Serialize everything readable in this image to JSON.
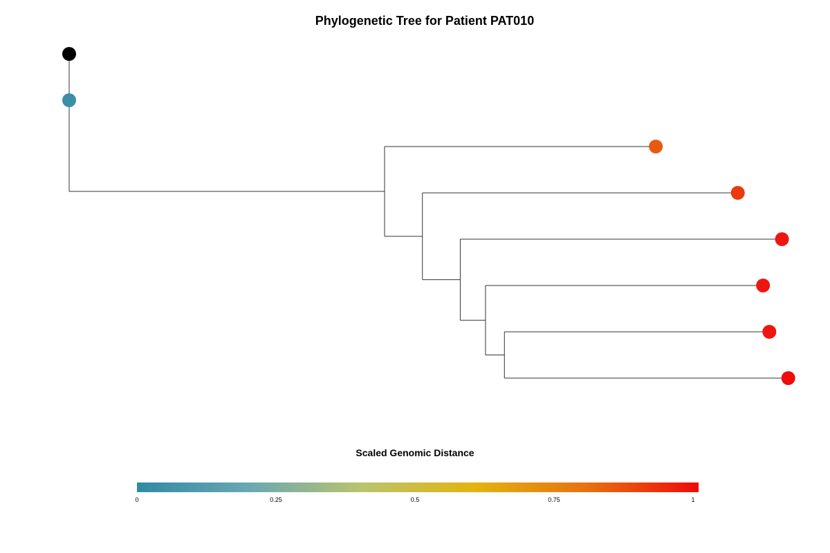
{
  "chart_data": {
    "type": "tree",
    "title": "Phylogenetic Tree for Patient PAT010",
    "root": {
      "distance": 0,
      "color": "#000000",
      "children": [
        {
          "distance": 0,
          "color": "#3a8ea8",
          "children": [
            {
              "distance": 0.5,
              "children": [
                {
                  "distance": 0.93,
                  "color": "#e85a12"
                },
                {
                  "distance": 0.56,
                  "children": [
                    {
                      "distance": 1.06,
                      "color": "#ec3a10"
                    },
                    {
                      "distance": 0.62,
                      "children": [
                        {
                          "distance": 1.13,
                          "color": "#ee1610"
                        },
                        {
                          "distance": 0.66,
                          "children": [
                            {
                              "distance": 1.1,
                              "color": "#ee1610"
                            },
                            {
                              "distance": 0.69,
                              "children": [
                                {
                                  "distance": 1.11,
                                  "color": "#ee1610"
                                },
                                {
                                  "distance": 1.14,
                                  "color": "#ee0c0c"
                                }
                              ]
                            }
                          ]
                        }
                      ]
                    }
                  ]
                }
              ]
            }
          ]
        }
      ]
    },
    "colorbar": {
      "title": "Scaled Genomic Distance",
      "range": [
        0,
        1
      ],
      "ticks": [
        0,
        0.25,
        0.5,
        0.75,
        1
      ],
      "tick_labels": [
        "0",
        "0.25",
        "0.5",
        "0.75",
        "1"
      ],
      "gradient": [
        "#2f8aa5",
        "#6aa7b3",
        "#b9c46e",
        "#e3b40f",
        "#e7720f",
        "#f00a0a"
      ]
    }
  }
}
